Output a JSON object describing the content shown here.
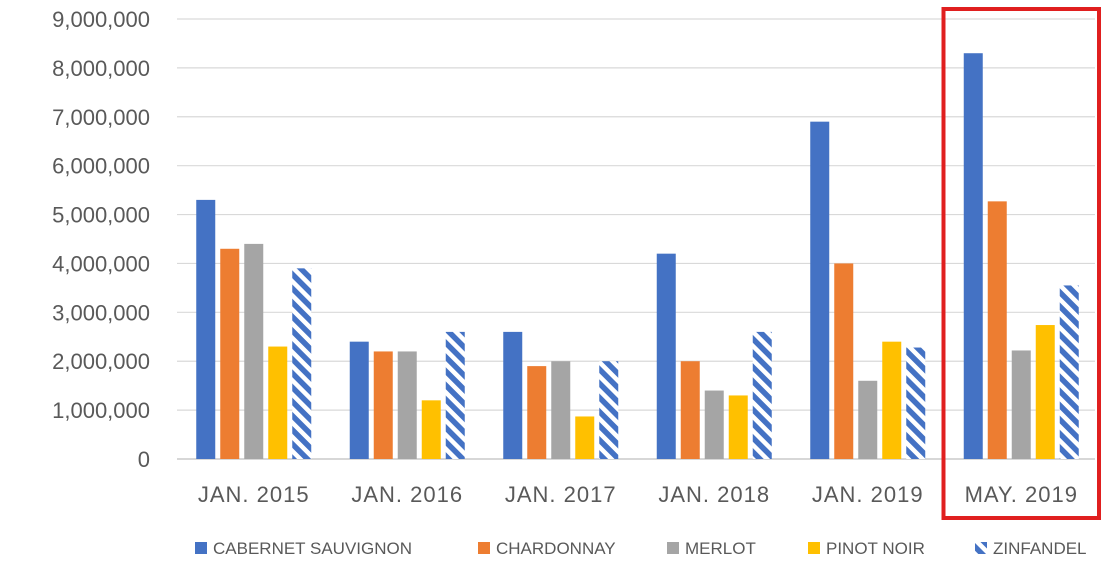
{
  "chart_data": {
    "type": "bar",
    "title": "",
    "xlabel": "",
    "ylabel": "",
    "ylim": [
      0,
      9000000
    ],
    "y_ticks": [
      0,
      1000000,
      2000000,
      3000000,
      4000000,
      5000000,
      6000000,
      7000000,
      8000000,
      9000000
    ],
    "y_tick_labels": [
      "0",
      "1,000,000",
      "2,000,000",
      "3,000,000",
      "4,000,000",
      "5,000,000",
      "6,000,000",
      "7,000,000",
      "8,000,000",
      "9,000,000"
    ],
    "categories": [
      "JAN. 2015",
      "JAN. 2016",
      "JAN. 2017",
      "JAN. 2018",
      "JAN. 2019",
      "MAY. 2019"
    ],
    "highlighted_category": "MAY. 2019",
    "highlight_color": "#e01f1f",
    "grid": true,
    "legend_position": "bottom",
    "series": [
      {
        "name": "CABERNET SAUVIGNON",
        "color": "#4472c4",
        "pattern": "solid",
        "values": [
          5300000,
          2400000,
          2600000,
          4200000,
          6900000,
          8300000
        ]
      },
      {
        "name": "CHARDONNAY",
        "color": "#ed7d31",
        "pattern": "solid",
        "values": [
          4300000,
          2200000,
          1900000,
          2000000,
          4000000,
          5270000
        ]
      },
      {
        "name": "MERLOT",
        "color": "#a5a5a5",
        "pattern": "solid",
        "values": [
          4400000,
          2200000,
          2000000,
          1400000,
          1600000,
          2220000
        ]
      },
      {
        "name": "PINOT NOIR",
        "color": "#ffc000",
        "pattern": "solid",
        "values": [
          2300000,
          1200000,
          870000,
          1300000,
          2400000,
          2740000
        ]
      },
      {
        "name": "ZINFANDEL",
        "color": "#4472c4",
        "pattern": "diagonal-stripes",
        "values": [
          3900000,
          2600000,
          2000000,
          2600000,
          2280000,
          3550000
        ]
      }
    ]
  }
}
